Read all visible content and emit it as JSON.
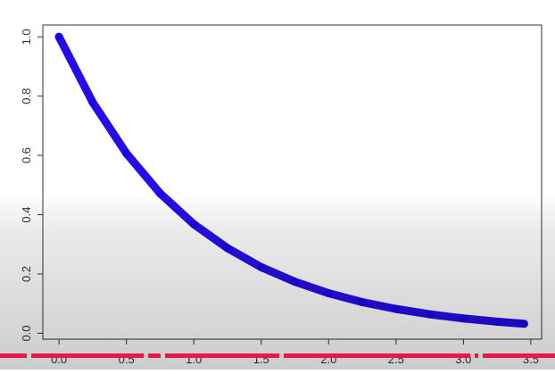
{
  "chart_data": {
    "type": "line",
    "title": "",
    "xlabel": "",
    "ylabel": "",
    "xlim": [
      -0.12,
      3.58
    ],
    "ylim": [
      -0.02,
      1.04
    ],
    "x_ticks": [
      "0.0",
      "0.5",
      "1.0",
      "1.5",
      "2.0",
      "2.5",
      "3.0",
      "3.5"
    ],
    "y_ticks": [
      "0.0",
      "0.2",
      "0.4",
      "0.6",
      "0.8",
      "1.0"
    ],
    "grid": false,
    "series": [
      {
        "color": "#1a00e6",
        "x": [
          0.0,
          0.25,
          0.5,
          0.75,
          1.0,
          1.25,
          1.5,
          1.75,
          2.0,
          2.25,
          2.5,
          2.75,
          3.0,
          3.25,
          3.45
        ],
        "y": [
          1.0,
          0.779,
          0.607,
          0.472,
          0.368,
          0.287,
          0.223,
          0.174,
          0.135,
          0.105,
          0.082,
          0.064,
          0.05,
          0.039,
          0.032
        ]
      }
    ]
  },
  "colors": {
    "axis": "#333333",
    "series": "#1a00e6",
    "timeline": "#e8174b"
  }
}
